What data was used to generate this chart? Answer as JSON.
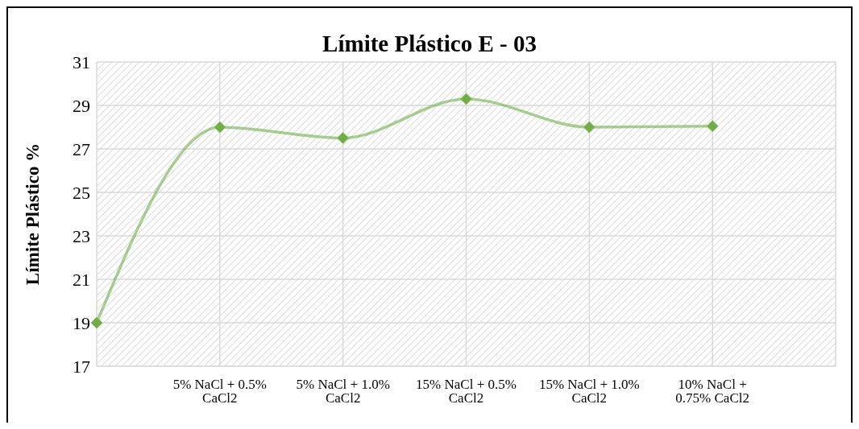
{
  "chart_data": {
    "type": "line",
    "title": "Límite Plástico E - 03",
    "ylabel": "Límite Plástico %",
    "categories": [
      null,
      "5% NaCl + 0.5% CaCl2",
      "5% NaCl + 1.0% CaCl2",
      "15% NaCl + 0.5% CaCl2",
      "15% NaCl + 1.0% CaCl2",
      "10% NaCl + 0.75% CaCl2",
      null
    ],
    "series": [
      {
        "color": "#70ad47",
        "values": [
          19,
          28,
          27.5,
          29.3,
          28,
          28.05,
          null
        ]
      }
    ],
    "ylim": [
      17,
      31
    ],
    "yticks": [
      17,
      19,
      21,
      23,
      25,
      27,
      29,
      31
    ],
    "grid": true,
    "marker": "diamond",
    "line_style": "solid",
    "legend": false
  }
}
